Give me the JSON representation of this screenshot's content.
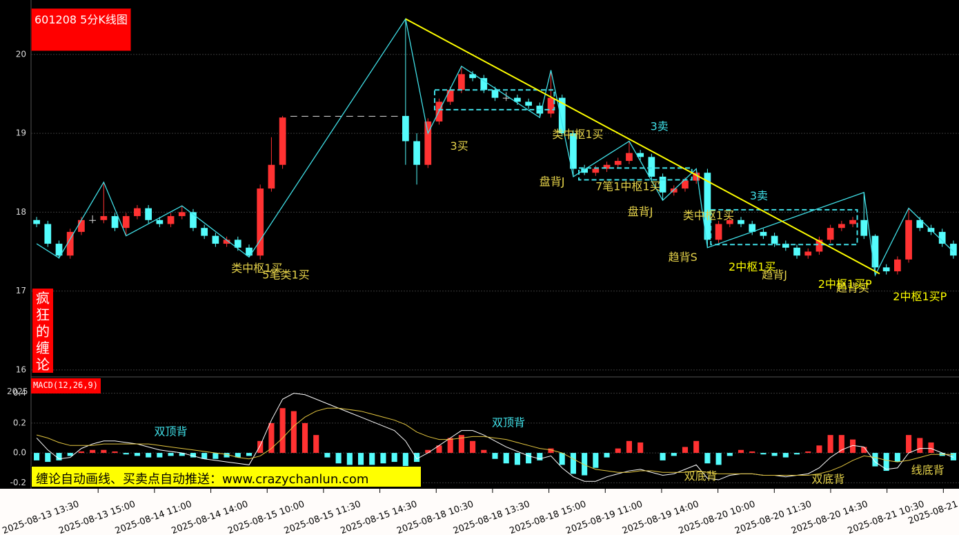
{
  "chart_data": [
    {
      "type": "candlestick",
      "title": "601208 5分K线图",
      "side_label": "疯狂的缠论",
      "xlim": [
        0,
        83
      ],
      "ylim": [
        15.92,
        20.69
      ],
      "yticks": [
        16,
        17,
        18,
        19,
        20
      ],
      "grid": true,
      "up_color": "#ff3232",
      "down_color": "#54fcfc",
      "flat_color": "#dddddd",
      "ohlc": [
        [
          17.9,
          17.94,
          17.81,
          17.85
        ],
        [
          17.85,
          17.89,
          17.56,
          17.6
        ],
        [
          17.6,
          17.64,
          17.41,
          17.45
        ],
        [
          17.45,
          17.79,
          17.41,
          17.75
        ],
        [
          17.75,
          17.94,
          17.71,
          17.9
        ],
        [
          17.9,
          17.96,
          17.86,
          17.9
        ],
        [
          17.9,
          18.38,
          17.86,
          17.95
        ],
        [
          17.95,
          17.99,
          17.76,
          17.8
        ],
        [
          17.8,
          17.99,
          17.7,
          17.95
        ],
        [
          17.95,
          18.09,
          17.91,
          18.05
        ],
        [
          18.05,
          18.09,
          17.86,
          17.9
        ],
        [
          17.9,
          17.94,
          17.81,
          17.85
        ],
        [
          17.85,
          17.99,
          17.81,
          17.95
        ],
        [
          17.95,
          18.08,
          17.91,
          18.0
        ],
        [
          18.0,
          18.04,
          17.76,
          17.8
        ],
        [
          17.8,
          17.84,
          17.66,
          17.7
        ],
        [
          17.7,
          17.74,
          17.56,
          17.6
        ],
        [
          17.6,
          17.69,
          17.56,
          17.65
        ],
        [
          17.65,
          17.69,
          17.51,
          17.55
        ],
        [
          17.55,
          17.59,
          17.43,
          17.45
        ],
        [
          17.45,
          18.35,
          17.4,
          18.3
        ],
        [
          18.3,
          18.95,
          18.26,
          18.6
        ],
        [
          18.6,
          19.22,
          18.55,
          19.2
        ],
        [
          19.22,
          19.22,
          19.22,
          19.22
        ],
        [
          19.22,
          19.22,
          19.22,
          19.22
        ],
        [
          19.22,
          19.22,
          19.22,
          19.22
        ],
        [
          19.22,
          19.22,
          19.22,
          19.22
        ],
        [
          19.22,
          19.22,
          19.22,
          19.22
        ],
        [
          19.22,
          19.22,
          19.22,
          19.22
        ],
        [
          19.22,
          19.22,
          19.22,
          19.22
        ],
        [
          19.22,
          19.22,
          19.22,
          19.22
        ],
        [
          19.22,
          19.22,
          19.22,
          19.22
        ],
        [
          19.22,
          19.22,
          19.22,
          19.22
        ],
        [
          19.22,
          20.45,
          18.6,
          18.9
        ],
        [
          18.9,
          19.0,
          18.35,
          18.6
        ],
        [
          18.6,
          19.19,
          18.56,
          19.15
        ],
        [
          19.15,
          19.44,
          19.11,
          19.4
        ],
        [
          19.4,
          19.59,
          19.36,
          19.55
        ],
        [
          19.55,
          19.85,
          19.51,
          19.75
        ],
        [
          19.75,
          19.79,
          19.66,
          19.7
        ],
        [
          19.7,
          19.74,
          19.51,
          19.55
        ],
        [
          19.55,
          19.59,
          19.41,
          19.45
        ],
        [
          19.45,
          19.52,
          19.41,
          19.45
        ],
        [
          19.45,
          19.49,
          19.36,
          19.4
        ],
        [
          19.4,
          19.44,
          19.31,
          19.35
        ],
        [
          19.35,
          19.39,
          19.2,
          19.25
        ],
        [
          19.25,
          19.8,
          19.2,
          19.45
        ],
        [
          19.45,
          19.49,
          18.96,
          19.0
        ],
        [
          19.0,
          19.04,
          18.45,
          18.55
        ],
        [
          18.55,
          18.6,
          18.47,
          18.5
        ],
        [
          18.5,
          18.59,
          18.46,
          18.55
        ],
        [
          18.55,
          18.64,
          18.51,
          18.6
        ],
        [
          18.6,
          18.69,
          18.56,
          18.65
        ],
        [
          18.65,
          18.9,
          18.61,
          18.75
        ],
        [
          18.75,
          18.79,
          18.66,
          18.7
        ],
        [
          18.7,
          18.74,
          18.41,
          18.45
        ],
        [
          18.45,
          18.49,
          18.15,
          18.25
        ],
        [
          18.25,
          18.34,
          18.21,
          18.3
        ],
        [
          18.3,
          18.44,
          18.26,
          18.4
        ],
        [
          18.4,
          18.55,
          18.36,
          18.5
        ],
        [
          18.5,
          18.55,
          17.55,
          17.65
        ],
        [
          17.65,
          17.89,
          17.61,
          17.85
        ],
        [
          17.85,
          17.94,
          17.81,
          17.9
        ],
        [
          17.9,
          17.94,
          17.81,
          17.85
        ],
        [
          17.85,
          17.89,
          17.71,
          17.75
        ],
        [
          17.75,
          17.79,
          17.66,
          17.7
        ],
        [
          17.7,
          17.74,
          17.56,
          17.6
        ],
        [
          17.6,
          17.64,
          17.51,
          17.55
        ],
        [
          17.55,
          17.59,
          17.41,
          17.45
        ],
        [
          17.45,
          17.54,
          17.41,
          17.5
        ],
        [
          17.5,
          17.69,
          17.46,
          17.65
        ],
        [
          17.65,
          17.84,
          17.61,
          17.8
        ],
        [
          17.8,
          17.89,
          17.76,
          17.85
        ],
        [
          17.85,
          17.94,
          17.81,
          17.9
        ],
        [
          17.9,
          18.25,
          17.66,
          17.7
        ],
        [
          17.7,
          17.72,
          17.2,
          17.3
        ],
        [
          17.3,
          17.34,
          17.21,
          17.25
        ],
        [
          17.25,
          17.44,
          17.21,
          17.4
        ],
        [
          17.4,
          18.05,
          17.36,
          17.9
        ],
        [
          17.9,
          17.94,
          17.76,
          17.8
        ],
        [
          17.8,
          17.84,
          17.71,
          17.75
        ],
        [
          17.75,
          17.79,
          17.56,
          17.6
        ],
        [
          17.6,
          17.64,
          17.41,
          17.45
        ]
      ],
      "strokes": {
        "color": "#40e0e8",
        "x": [
          0,
          2,
          6,
          8,
          13,
          19,
          33,
          35,
          38,
          45,
          46,
          48,
          53,
          56,
          59,
          60,
          74,
          75,
          78,
          82
        ],
        "y": [
          17.6,
          17.42,
          18.38,
          17.7,
          18.08,
          17.43,
          20.45,
          19.0,
          19.85,
          19.2,
          19.8,
          18.45,
          18.9,
          18.15,
          18.55,
          17.55,
          18.25,
          17.2,
          18.05,
          17.5
        ]
      },
      "centers": [
        {
          "x": [
            35.6,
            46.3
          ],
          "y": [
            19.3,
            19.55
          ]
        },
        {
          "x": [
            48.5,
            58.6
          ],
          "y": [
            18.41,
            18.56
          ]
        },
        {
          "x": [
            60.3,
            73.4
          ],
          "y": [
            17.59,
            18.03
          ]
        }
      ],
      "center_color": "#40e0e8",
      "trend_line": {
        "color": "#ffff00",
        "x": [
          33,
          75.4
        ],
        "y": [
          20.45,
          17.22
        ]
      },
      "annotations": [
        {
          "text": "类中枢1买",
          "x": 19.7,
          "y": 17.28,
          "color": "#e6d34a"
        },
        {
          "text": "5笔类1买",
          "x": 22.3,
          "y": 17.2,
          "color": "#e6d34a"
        },
        {
          "text": "3买",
          "x": 37.8,
          "y": 18.83,
          "color": "#e6d34a"
        },
        {
          "text": "类中枢1买",
          "x": 48.4,
          "y": 18.98,
          "color": "#e6d34a"
        },
        {
          "text": "3卖",
          "x": 55.7,
          "y": 19.08,
          "color": "#40e0e8"
        },
        {
          "text": "盘背J",
          "x": 46.1,
          "y": 18.38,
          "color": "#e6d34a"
        },
        {
          "text": "7笔1中枢1买",
          "x": 52.9,
          "y": 18.32,
          "color": "#e6d34a"
        },
        {
          "text": "盘背J",
          "x": 54,
          "y": 18.0,
          "color": "#e6d34a"
        },
        {
          "text": "类中枢1买",
          "x": 60.1,
          "y": 17.95,
          "color": "#e6d34a"
        },
        {
          "text": "3卖",
          "x": 64.6,
          "y": 18.2,
          "color": "#40e0e8"
        },
        {
          "text": "趋背S",
          "x": 57.8,
          "y": 17.42,
          "color": "#e6d34a"
        },
        {
          "text": "2中枢1买",
          "x": 64,
          "y": 17.3,
          "color": "#ffff00"
        },
        {
          "text": "趋背J",
          "x": 66,
          "y": 17.2,
          "color": "#e6d34a"
        },
        {
          "text": "趋背买",
          "x": 73,
          "y": 17.03,
          "color": "#e6d34a"
        },
        {
          "text": "2中枢1买P",
          "x": 72.3,
          "y": 17.08,
          "color": "#ffff00"
        },
        {
          "text": "2中枢1买P",
          "x": 79,
          "y": 16.92,
          "color": "#ffff00"
        }
      ]
    },
    {
      "type": "macd",
      "title": "MACD(12,26,9)",
      "xlim": [
        0,
        83
      ],
      "ylim": [
        -0.24,
        0.5
      ],
      "yticks": [
        0.4,
        0.2,
        {
          "value": 0,
          "label": "0.0"
        },
        -0.2
      ],
      "grid": true,
      "dif_color": "#ffffff",
      "dea_color": "#e6c840",
      "hist_colors": [
        "#ff3232",
        "#54fcfc"
      ],
      "xticks": [
        {
          "value": 6.0,
          "label": "2025-08-13 13:30"
        },
        {
          "value": 11.04,
          "label": "2025-08-13 15:00"
        },
        {
          "value": 16.08,
          "label": "2025-08-14 11:00"
        },
        {
          "value": 21.12,
          "label": "2025-08-14 14:00"
        },
        {
          "value": 26.16,
          "label": "2025-08-15 10:00"
        },
        {
          "value": 31.2,
          "label": "2025-08-15 11:30"
        },
        {
          "value": 36.24,
          "label": "2025-08-15 14:30"
        },
        {
          "value": 41.28,
          "label": "2025-08-18 10:30"
        },
        {
          "value": 46.32,
          "label": "2025-08-18 13:30"
        },
        {
          "value": 51.36,
          "label": "2025-08-18 15:00"
        },
        {
          "value": 56.4,
          "label": "2025-08-19 11:00"
        },
        {
          "value": 61.44,
          "label": "2025-08-19 14:00"
        },
        {
          "value": 66.48,
          "label": "2025-08-20 10:00"
        },
        {
          "value": 71.52,
          "label": "2025-08-20 11:30"
        },
        {
          "value": 76.56,
          "label": "2025-08-20 14:30"
        },
        {
          "value": 81.6,
          "label": "2025-08-21 10:30"
        },
        {
          "value": 86.64,
          "label": "2025-08-21"
        }
      ],
      "dif": [
        0.1,
        0.02,
        -0.04,
        -0.03,
        0.03,
        0.06,
        0.08,
        0.08,
        0.07,
        0.06,
        0.04,
        0.02,
        0.01,
        0.0,
        -0.02,
        -0.04,
        -0.05,
        -0.06,
        -0.07,
        -0.08,
        0.05,
        0.22,
        0.36,
        0.4,
        0.39,
        0.36,
        0.33,
        0.3,
        0.27,
        0.24,
        0.21,
        0.18,
        0.15,
        0.08,
        -0.04,
        0.0,
        0.05,
        0.1,
        0.15,
        0.15,
        0.12,
        0.08,
        0.04,
        0.01,
        -0.02,
        -0.04,
        -0.02,
        -0.1,
        -0.16,
        -0.19,
        -0.19,
        -0.16,
        -0.14,
        -0.12,
        -0.11,
        -0.13,
        -0.15,
        -0.14,
        -0.11,
        -0.08,
        -0.17,
        -0.18,
        -0.15,
        -0.14,
        -0.14,
        -0.15,
        -0.15,
        -0.16,
        -0.15,
        -0.14,
        -0.1,
        -0.03,
        0.02,
        0.05,
        0.04,
        -0.06,
        -0.11,
        -0.1,
        0.0,
        0.03,
        0.03,
        0.0,
        -0.03
      ],
      "dea": [
        0.12,
        0.1,
        0.07,
        0.05,
        0.05,
        0.05,
        0.06,
        0.06,
        0.06,
        0.06,
        0.06,
        0.05,
        0.04,
        0.03,
        0.02,
        0.01,
        0.0,
        -0.01,
        -0.03,
        -0.04,
        -0.02,
        0.03,
        0.1,
        0.18,
        0.24,
        0.28,
        0.3,
        0.3,
        0.29,
        0.28,
        0.26,
        0.24,
        0.22,
        0.19,
        0.14,
        0.11,
        0.09,
        0.09,
        0.1,
        0.11,
        0.11,
        0.1,
        0.09,
        0.07,
        0.05,
        0.03,
        0.02,
        0.0,
        -0.04,
        -0.08,
        -0.11,
        -0.12,
        -0.13,
        -0.13,
        -0.12,
        -0.12,
        -0.13,
        -0.13,
        -0.13,
        -0.12,
        -0.13,
        -0.14,
        -0.14,
        -0.14,
        -0.14,
        -0.15,
        -0.15,
        -0.15,
        -0.15,
        -0.15,
        -0.14,
        -0.12,
        -0.09,
        -0.05,
        -0.02,
        -0.03,
        -0.05,
        -0.06,
        -0.05,
        -0.03,
        -0.01,
        -0.01,
        -0.01
      ],
      "hist": [
        -0.05,
        -0.06,
        -0.05,
        -0.02,
        0.01,
        0.02,
        0.02,
        0.01,
        -0.01,
        -0.02,
        -0.03,
        -0.03,
        -0.02,
        -0.02,
        -0.03,
        -0.04,
        -0.04,
        -0.03,
        -0.03,
        -0.02,
        0.08,
        0.2,
        0.3,
        0.28,
        0.2,
        0.12,
        -0.03,
        -0.07,
        -0.08,
        -0.08,
        -0.08,
        -0.07,
        -0.06,
        -0.1,
        -0.06,
        0.02,
        0.05,
        0.1,
        0.12,
        0.08,
        0.02,
        -0.04,
        -0.07,
        -0.08,
        -0.07,
        -0.05,
        0.03,
        -0.08,
        -0.14,
        -0.15,
        -0.1,
        -0.03,
        0.03,
        0.08,
        0.07,
        0.0,
        -0.05,
        -0.02,
        0.04,
        0.08,
        -0.07,
        -0.08,
        -0.02,
        0.02,
        0.01,
        -0.01,
        -0.02,
        -0.03,
        -0.01,
        0.01,
        0.05,
        0.12,
        0.12,
        0.09,
        0.04,
        -0.09,
        -0.12,
        -0.06,
        0.12,
        0.1,
        0.07,
        -0.02,
        -0.05
      ],
      "annotations": [
        {
          "text": "双顶背",
          "x": 12,
          "y": 0.14,
          "color": "#40e0e8"
        },
        {
          "text": "双顶背",
          "x": 42.2,
          "y": 0.2,
          "color": "#40e0e8"
        },
        {
          "text": "双底背",
          "x": 59.4,
          "y": -0.16,
          "color": "#e6d34a"
        },
        {
          "text": "双底背",
          "x": 70.8,
          "y": -0.18,
          "color": "#e6d34a"
        },
        {
          "text": "线底背",
          "x": 79.7,
          "y": -0.12,
          "color": "#e6d34a"
        }
      ]
    }
  ],
  "banner": "缠论自动画线、买卖点自动推送：www.crazychanlun.com",
  "corner_text": "2025"
}
